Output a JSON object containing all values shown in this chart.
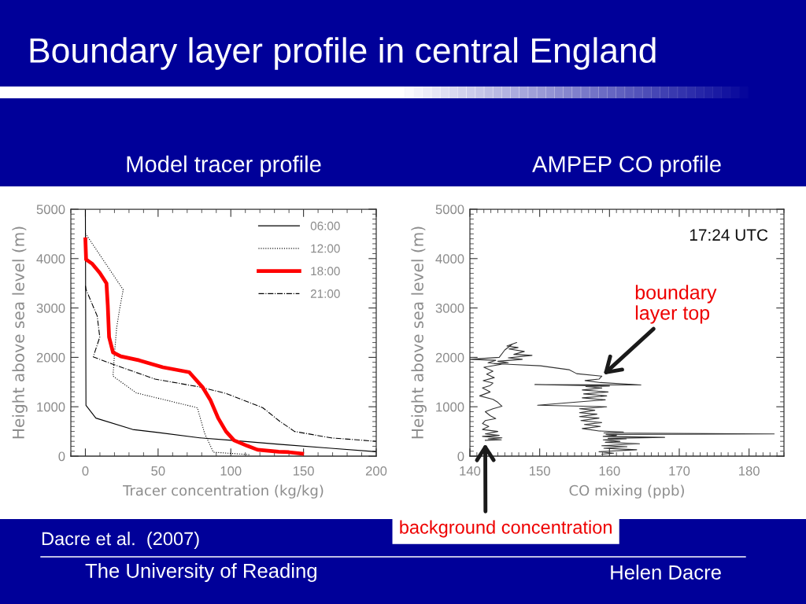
{
  "chart_data": [
    {
      "type": "other",
      "title": "Boundary layer profile in central England",
      "annotations": [
        "Dacre et al.  (2007)",
        "The University of Reading",
        "Helen Dacre"
      ]
    },
    {
      "type": "line",
      "title": "Model tracer profile",
      "xlabel": "Tracer concentration (kg/kg)",
      "ylabel": "Height above sea level (m)",
      "xlim": [
        -10,
        200
      ],
      "xticks": [
        0,
        50,
        100,
        150,
        200
      ],
      "ylim": [
        0,
        5000
      ],
      "yticks": [
        0,
        1000,
        2000,
        3000,
        4000,
        5000
      ],
      "legend": "top right",
      "series": [
        {
          "name": "06:00",
          "color": "#000000",
          "line_style": "solid",
          "x": [
            0,
            0.4,
            7.2,
            32.5,
            49.7,
            78.7,
            100.4,
            132.9,
            169,
            200
          ],
          "values": [
            5000,
            1030,
            770,
            540,
            480,
            370,
            320,
            240,
            160,
            90
          ]
        },
        {
          "name": "12:00",
          "color": "#000000",
          "line_style": "dotted",
          "x": [
            0,
            26,
            23.5,
            21.5,
            20,
            19,
            35,
            77,
            82,
            88,
            113
          ],
          "values": [
            4510,
            3370,
            2970,
            2600,
            2070,
            1620,
            1280,
            980,
            460,
            80,
            30
          ]
        },
        {
          "name": "18:00",
          "color": "#ff0000",
          "line_style": "solid",
          "x": [
            0,
            0.5,
            4.5,
            9.9,
            14.5,
            15.4,
            16.3,
            19,
            24.4,
            37,
            53.3,
            71.4,
            80.5,
            85.9,
            91.3,
            96.7,
            102.2,
            111.2,
            118.4,
            132.9,
            140,
            149
          ],
          "values": [
            4390,
            3980,
            3900,
            3710,
            3500,
            3050,
            2410,
            2100,
            2020,
            1940,
            1800,
            1700,
            1400,
            1140,
            770,
            500,
            320,
            210,
            130,
            90,
            80,
            50
          ]
        },
        {
          "name": "21:00",
          "color": "#000000",
          "line_style": "dashdot",
          "x": [
            0,
            0.5,
            8.1,
            9.9,
            5.4,
            19,
            47.9,
            78.7,
            96.7,
            122,
            133,
            143.8,
            169,
            200
          ],
          "values": [
            3450,
            3370,
            2840,
            2410,
            2010,
            1860,
            1560,
            1400,
            1270,
            980,
            720,
            500,
            370,
            300
          ]
        }
      ]
    },
    {
      "type": "line",
      "title": "AMPEP CO profile",
      "xlabel": "CO mixing (ppb)",
      "ylabel": "Height above sea level (m)",
      "xlim": [
        140,
        185
      ],
      "xticks": [
        140,
        150,
        160,
        170,
        180
      ],
      "ylim": [
        0,
        5000
      ],
      "yticks": [
        0,
        1000,
        2000,
        3000,
        4000,
        5000
      ],
      "annotations": [
        "17:24 UTC",
        {
          "text": "boundary layer top",
          "x": 158.9,
          "y": 1620
        },
        {
          "text": "background concentration",
          "x": 142.2,
          "y": 320
        }
      ],
      "series": [
        {
          "color": "#333333",
          "line_style": "solid",
          "x": [
            158.9,
            160.6,
            158.5,
            163.9,
            159.2,
            162.5,
            158.9,
            164.3,
            159.4,
            161.5,
            159.1,
            162.4,
            159.8,
            167.9,
            159.1,
            161,
            159.5,
            183.6,
            159.2,
            162,
            158.5,
            156.1,
            158.7,
            156.4,
            158.9,
            155.9,
            158.5,
            155.7,
            158.2,
            155.7,
            157.9,
            155.7,
            159.6,
            149.7,
            154.9,
            159.4,
            156.1,
            159.6,
            156.3,
            159.8,
            156.1,
            158.9,
            156.6,
            160,
            149.3,
            164.5,
            158.7,
            156.5,
            158.5,
            158.9,
            155.3,
            154.2,
            150.1,
            145.6,
            143.5,
            145.5,
            144,
            147.5,
            145.5,
            148.9,
            146.3,
            147.8,
            145.6,
            146.9,
            145.3,
            146.7,
            146.1,
            145,
            144.2,
            140,
            143.7,
            142.6,
            144.5,
            142,
            143.3,
            142.4,
            143.5,
            141.9,
            143.3,
            142.9,
            141.8,
            142.9,
            141.4,
            143.3,
            144,
            144.6,
            143.3,
            142.2,
            142.9,
            143.7,
            142.2,
            141.8,
            142.7,
            141.8,
            144,
            142.2,
            144.2,
            141.8,
            144.6,
            142.6,
            144.5,
            142.2
          ],
          "values": [
            40,
            60,
            90,
            130,
            160,
            190,
            210,
            250,
            280,
            300,
            330,
            350,
            360,
            380,
            400,
            420,
            440,
            450,
            470,
            490,
            510,
            560,
            600,
            640,
            680,
            720,
            770,
            800,
            850,
            880,
            930,
            960,
            1000,
            1030,
            1090,
            1140,
            1180,
            1220,
            1260,
            1300,
            1340,
            1380,
            1410,
            1420,
            1450,
            1440,
            1490,
            1530,
            1560,
            1620,
            1670,
            1750,
            1830,
            1860,
            1870,
            1890,
            1920,
            1960,
            1990,
            2040,
            2060,
            2120,
            2170,
            2200,
            2230,
            2300,
            2270,
            2150,
            2000,
            1960,
            1940,
            1890,
            1860,
            1800,
            1720,
            1660,
            1590,
            1530,
            1480,
            1430,
            1380,
            1300,
            1220,
            1150,
            1090,
            1010,
            960,
            900,
            820,
            760,
            720,
            660,
            600,
            540,
            500,
            450,
            420,
            400,
            370,
            350,
            330,
            320
          ]
        }
      ]
    }
  ]
}
